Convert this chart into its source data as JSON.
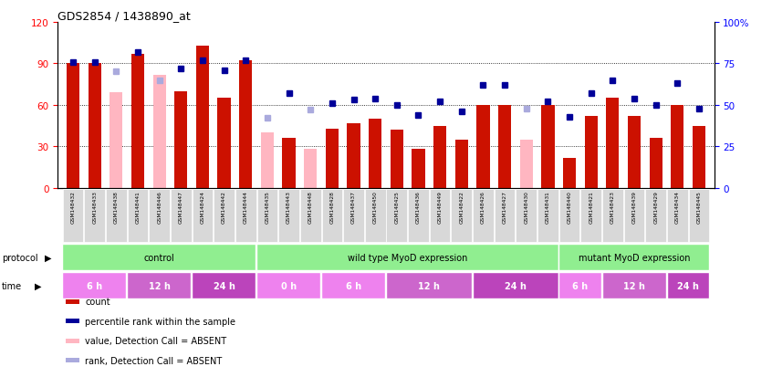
{
  "title": "GDS2854 / 1438890_at",
  "samples": [
    "GSM148432",
    "GSM148433",
    "GSM148438",
    "GSM148441",
    "GSM148446",
    "GSM148447",
    "GSM148424",
    "GSM148442",
    "GSM148444",
    "GSM148435",
    "GSM148443",
    "GSM148448",
    "GSM148428",
    "GSM148437",
    "GSM148450",
    "GSM148425",
    "GSM148436",
    "GSM148449",
    "GSM148422",
    "GSM148426",
    "GSM148427",
    "GSM148430",
    "GSM148431",
    "GSM148440",
    "GSM148421",
    "GSM148423",
    "GSM148439",
    "GSM148429",
    "GSM148434",
    "GSM148445"
  ],
  "bar_values": [
    90,
    90,
    0,
    97,
    0,
    70,
    103,
    65,
    92,
    0,
    36,
    0,
    43,
    47,
    50,
    42,
    28,
    45,
    35,
    60,
    60,
    0,
    60,
    22,
    52,
    65,
    52,
    36,
    60,
    45
  ],
  "bar_absent": [
    0,
    0,
    69,
    0,
    82,
    0,
    0,
    0,
    0,
    40,
    0,
    28,
    0,
    0,
    0,
    0,
    0,
    0,
    0,
    0,
    0,
    35,
    0,
    0,
    0,
    0,
    0,
    0,
    0,
    0
  ],
  "rank_values": [
    76,
    76,
    0,
    82,
    0,
    72,
    77,
    71,
    77,
    0,
    57,
    0,
    51,
    53,
    54,
    50,
    44,
    52,
    46,
    62,
    62,
    0,
    52,
    43,
    57,
    65,
    54,
    50,
    63,
    48
  ],
  "rank_absent": [
    0,
    0,
    70,
    0,
    65,
    0,
    0,
    0,
    0,
    42,
    0,
    47,
    0,
    0,
    0,
    0,
    0,
    0,
    0,
    0,
    0,
    48,
    0,
    0,
    0,
    0,
    0,
    0,
    0,
    0
  ],
  "is_absent": [
    false,
    false,
    true,
    false,
    true,
    false,
    false,
    false,
    false,
    true,
    false,
    true,
    false,
    false,
    false,
    false,
    false,
    false,
    false,
    false,
    false,
    true,
    false,
    false,
    false,
    false,
    false,
    false,
    false,
    false
  ],
  "protocol_groups": [
    {
      "label": "control",
      "start": 0,
      "end": 8
    },
    {
      "label": "wild type MyoD expression",
      "start": 9,
      "end": 22
    },
    {
      "label": "mutant MyoD expression",
      "start": 23,
      "end": 29
    }
  ],
  "time_groups": [
    {
      "label": "6 h",
      "start": 0,
      "end": 2,
      "color": "#ee82ee"
    },
    {
      "label": "12 h",
      "start": 3,
      "end": 5,
      "color": "#cc66cc"
    },
    {
      "label": "24 h",
      "start": 6,
      "end": 8,
      "color": "#bb44bb"
    },
    {
      "label": "0 h",
      "start": 9,
      "end": 11,
      "color": "#ee82ee"
    },
    {
      "label": "6 h",
      "start": 12,
      "end": 14,
      "color": "#ee82ee"
    },
    {
      "label": "12 h",
      "start": 15,
      "end": 18,
      "color": "#cc66cc"
    },
    {
      "label": "24 h",
      "start": 19,
      "end": 22,
      "color": "#bb44bb"
    },
    {
      "label": "6 h",
      "start": 23,
      "end": 24,
      "color": "#ee82ee"
    },
    {
      "label": "12 h",
      "start": 25,
      "end": 27,
      "color": "#cc66cc"
    },
    {
      "label": "24 h",
      "start": 28,
      "end": 29,
      "color": "#bb44bb"
    }
  ],
  "bar_color_present": "#cc1100",
  "bar_color_absent": "#ffb6c1",
  "rank_color_present": "#000099",
  "rank_color_absent": "#aaaadd",
  "protocol_color": "#90ee90",
  "ylim_left": [
    0,
    120
  ],
  "ylim_right": [
    0,
    100
  ],
  "yticks_left": [
    0,
    30,
    60,
    90,
    120
  ],
  "yticks_right": [
    0,
    25,
    50,
    75,
    100
  ]
}
